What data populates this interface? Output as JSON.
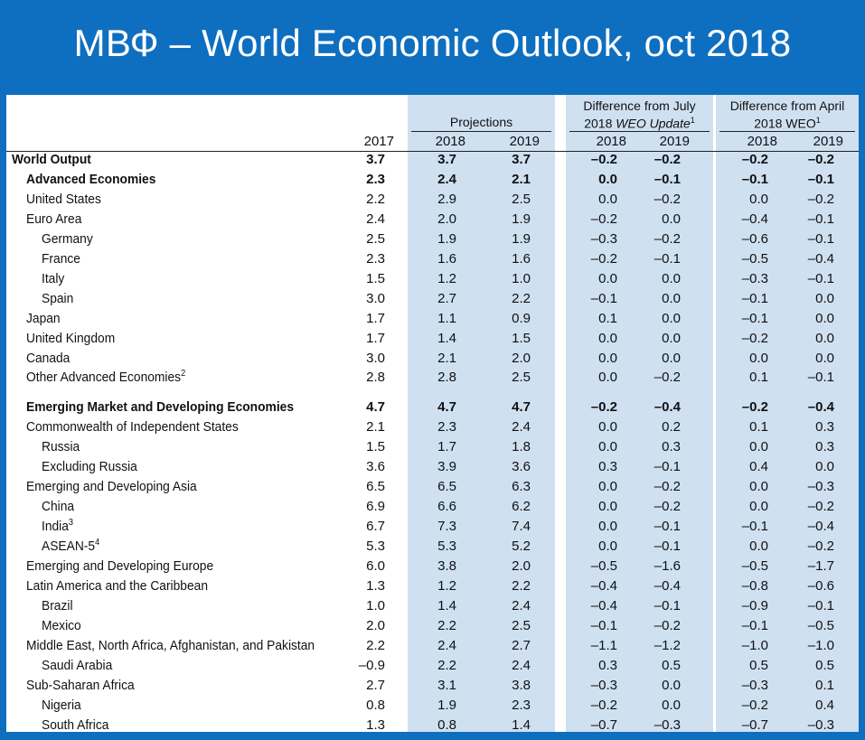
{
  "slide": {
    "title": "МВФ – World Economic Outlook, oct 2018"
  },
  "table": {
    "groups": {
      "projections": "Projections",
      "july_line1": "Difference from July",
      "july_line2": "2018",
      "july_italic": "WEO Update",
      "july_sup": "1",
      "april_line1": "Difference from April",
      "april_line2": "2018 WEO",
      "april_sup": "1"
    },
    "years": [
      "2017",
      "2018",
      "2019",
      "2018",
      "2019",
      "2018",
      "2019"
    ],
    "rows": [
      {
        "label": "World Output",
        "sup": "",
        "level": 0,
        "bold": true,
        "values": [
          "3.7",
          "3.7",
          "3.7",
          "–0.2",
          "–0.2",
          "–0.2",
          "–0.2"
        ]
      },
      {
        "label": "Advanced Economies",
        "sup": "",
        "level": 1,
        "bold": true,
        "values": [
          "2.3",
          "2.4",
          "2.1",
          "0.0",
          "–0.1",
          "–0.1",
          "–0.1"
        ]
      },
      {
        "label": "United States",
        "sup": "",
        "level": 1,
        "bold": false,
        "values": [
          "2.2",
          "2.9",
          "2.5",
          "0.0",
          "–0.2",
          "0.0",
          "–0.2"
        ]
      },
      {
        "label": "Euro Area",
        "sup": "",
        "level": 1,
        "bold": false,
        "values": [
          "2.4",
          "2.0",
          "1.9",
          "–0.2",
          "0.0",
          "–0.4",
          "–0.1"
        ]
      },
      {
        "label": "Germany",
        "sup": "",
        "level": 2,
        "bold": false,
        "values": [
          "2.5",
          "1.9",
          "1.9",
          "–0.3",
          "–0.2",
          "–0.6",
          "–0.1"
        ]
      },
      {
        "label": "France",
        "sup": "",
        "level": 2,
        "bold": false,
        "values": [
          "2.3",
          "1.6",
          "1.6",
          "–0.2",
          "–0.1",
          "–0.5",
          "–0.4"
        ]
      },
      {
        "label": "Italy",
        "sup": "",
        "level": 2,
        "bold": false,
        "values": [
          "1.5",
          "1.2",
          "1.0",
          "0.0",
          "0.0",
          "–0.3",
          "–0.1"
        ]
      },
      {
        "label": "Spain",
        "sup": "",
        "level": 2,
        "bold": false,
        "values": [
          "3.0",
          "2.7",
          "2.2",
          "–0.1",
          "0.0",
          "–0.1",
          "0.0"
        ]
      },
      {
        "label": "Japan",
        "sup": "",
        "level": 1,
        "bold": false,
        "values": [
          "1.7",
          "1.1",
          "0.9",
          "0.1",
          "0.0",
          "–0.1",
          "0.0"
        ]
      },
      {
        "label": "United Kingdom",
        "sup": "",
        "level": 1,
        "bold": false,
        "values": [
          "1.7",
          "1.4",
          "1.5",
          "0.0",
          "0.0",
          "–0.2",
          "0.0"
        ]
      },
      {
        "label": "Canada",
        "sup": "",
        "level": 1,
        "bold": false,
        "values": [
          "3.0",
          "2.1",
          "2.0",
          "0.0",
          "0.0",
          "0.0",
          "0.0"
        ]
      },
      {
        "label": "Other Advanced Economies",
        "sup": "2",
        "level": 1,
        "bold": false,
        "values": [
          "2.8",
          "2.8",
          "2.5",
          "0.0",
          "–0.2",
          "0.1",
          "–0.1"
        ]
      },
      {
        "label": "Emerging Market and Developing Economies",
        "sup": "",
        "level": 1,
        "bold": true,
        "values": [
          "4.7",
          "4.7",
          "4.7",
          "–0.2",
          "–0.4",
          "–0.2",
          "–0.4"
        ]
      },
      {
        "label": "Commonwealth of Independent States",
        "sup": "",
        "level": 1,
        "bold": false,
        "values": [
          "2.1",
          "2.3",
          "2.4",
          "0.0",
          "0.2",
          "0.1",
          "0.3"
        ]
      },
      {
        "label": "Russia",
        "sup": "",
        "level": 2,
        "bold": false,
        "values": [
          "1.5",
          "1.7",
          "1.8",
          "0.0",
          "0.3",
          "0.0",
          "0.3"
        ]
      },
      {
        "label": "Excluding Russia",
        "sup": "",
        "level": 2,
        "bold": false,
        "values": [
          "3.6",
          "3.9",
          "3.6",
          "0.3",
          "–0.1",
          "0.4",
          "0.0"
        ]
      },
      {
        "label": "Emerging and Developing Asia",
        "sup": "",
        "level": 1,
        "bold": false,
        "values": [
          "6.5",
          "6.5",
          "6.3",
          "0.0",
          "–0.2",
          "0.0",
          "–0.3"
        ]
      },
      {
        "label": "China",
        "sup": "",
        "level": 2,
        "bold": false,
        "values": [
          "6.9",
          "6.6",
          "6.2",
          "0.0",
          "–0.2",
          "0.0",
          "–0.2"
        ]
      },
      {
        "label": "India",
        "sup": "3",
        "level": 2,
        "bold": false,
        "values": [
          "6.7",
          "7.3",
          "7.4",
          "0.0",
          "–0.1",
          "–0.1",
          "–0.4"
        ]
      },
      {
        "label": "ASEAN-5",
        "sup": "4",
        "level": 2,
        "bold": false,
        "values": [
          "5.3",
          "5.3",
          "5.2",
          "0.0",
          "–0.1",
          "0.0",
          "–0.2"
        ]
      },
      {
        "label": "Emerging and Developing Europe",
        "sup": "",
        "level": 1,
        "bold": false,
        "values": [
          "6.0",
          "3.8",
          "2.0",
          "–0.5",
          "–1.6",
          "–0.5",
          "–1.7"
        ]
      },
      {
        "label": "Latin America and the Caribbean",
        "sup": "",
        "level": 1,
        "bold": false,
        "values": [
          "1.3",
          "1.2",
          "2.2",
          "–0.4",
          "–0.4",
          "–0.8",
          "–0.6"
        ]
      },
      {
        "label": "Brazil",
        "sup": "",
        "level": 2,
        "bold": false,
        "values": [
          "1.0",
          "1.4",
          "2.4",
          "–0.4",
          "–0.1",
          "–0.9",
          "–0.1"
        ]
      },
      {
        "label": "Mexico",
        "sup": "",
        "level": 2,
        "bold": false,
        "values": [
          "2.0",
          "2.2",
          "2.5",
          "–0.1",
          "–0.2",
          "–0.1",
          "–0.5"
        ]
      },
      {
        "label": "Middle East, North Africa, Afghanistan, and Pakistan",
        "sup": "",
        "level": 1,
        "bold": false,
        "values": [
          "2.2",
          "2.4",
          "2.7",
          "–1.1",
          "–1.2",
          "–1.0",
          "–1.0"
        ]
      },
      {
        "label": "Saudi Arabia",
        "sup": "",
        "level": 2,
        "bold": false,
        "values": [
          "–0.9",
          "2.2",
          "2.4",
          "0.3",
          "0.5",
          "0.5",
          "0.5"
        ]
      },
      {
        "label": "Sub-Saharan Africa",
        "sup": "",
        "level": 1,
        "bold": false,
        "values": [
          "2.7",
          "3.1",
          "3.8",
          "–0.3",
          "0.0",
          "–0.3",
          "0.1"
        ]
      },
      {
        "label": "Nigeria",
        "sup": "",
        "level": 2,
        "bold": false,
        "values": [
          "0.8",
          "1.9",
          "2.3",
          "–0.2",
          "0.0",
          "–0.2",
          "0.4"
        ]
      },
      {
        "label": "South Africa",
        "sup": "",
        "level": 2,
        "bold": false,
        "values": [
          "1.3",
          "0.8",
          "1.4",
          "–0.7",
          "–0.3",
          "–0.7",
          "–0.3"
        ]
      }
    ]
  },
  "colors": {
    "slide_background": "#0E6FC0",
    "column_shading": "#CFE0F1",
    "title_text": "#FFFFFF"
  }
}
